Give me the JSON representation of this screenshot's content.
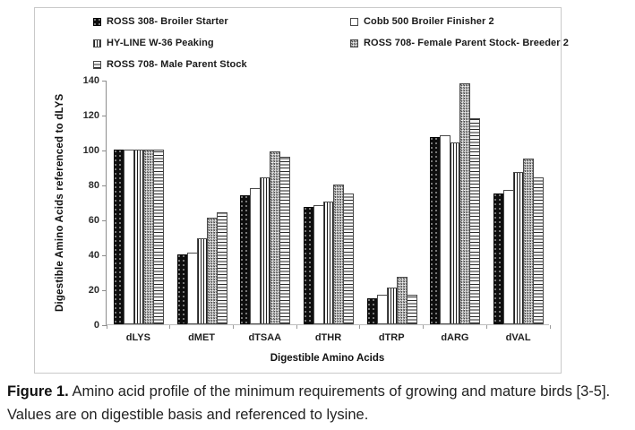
{
  "figure": {
    "caption_label": "Figure 1.",
    "caption_text": " Amino acid profile of the minimum requirements of growing and mature birds [3-5]. Values are on digestible basis and referenced to lysine."
  },
  "chart_data": {
    "type": "bar",
    "title": "",
    "xlabel": "Digestible Amino Acids",
    "ylabel": "Digestible Amino Acids referenced to dLYS",
    "ylim": [
      0,
      140
    ],
    "ytick_step": 20,
    "yticks": [
      0,
      20,
      40,
      60,
      80,
      100,
      120,
      140
    ],
    "grid": false,
    "legend_position": "top",
    "categories": [
      "dLYS",
      "dMET",
      "dTSAA",
      "dTHR",
      "dTRP",
      "dARG",
      "dVAL"
    ],
    "series": [
      {
        "name": "ROSS 308- Broiler Starter",
        "pattern": "black-speckle",
        "values": [
          100,
          40,
          74,
          67,
          15,
          107,
          75
        ]
      },
      {
        "name": "Cobb 500 Broiler Finisher 2",
        "pattern": "white",
        "values": [
          100,
          41,
          78,
          68,
          17,
          108,
          77
        ]
      },
      {
        "name": "HY-LINE W-36 Peaking",
        "pattern": "vertical-stripes",
        "values": [
          100,
          49,
          84,
          70,
          21,
          104,
          87
        ]
      },
      {
        "name": "ROSS 708- Female Parent Stock- Breeder 2",
        "pattern": "gray-speckle",
        "values": [
          100,
          61,
          99,
          80,
          27,
          138,
          95
        ]
      },
      {
        "name": "ROSS 708- Male Parent Stock",
        "pattern": "horizontal-stripes",
        "values": [
          100,
          64,
          96,
          75,
          17,
          118,
          84
        ]
      }
    ]
  },
  "colors": {
    "figure_border": "#c9c9c9",
    "axis_line": "#8c8c8c",
    "text": "#1a1a1a",
    "bar_fill_dark": "#0e0e0e",
    "background": "#ffffff"
  }
}
